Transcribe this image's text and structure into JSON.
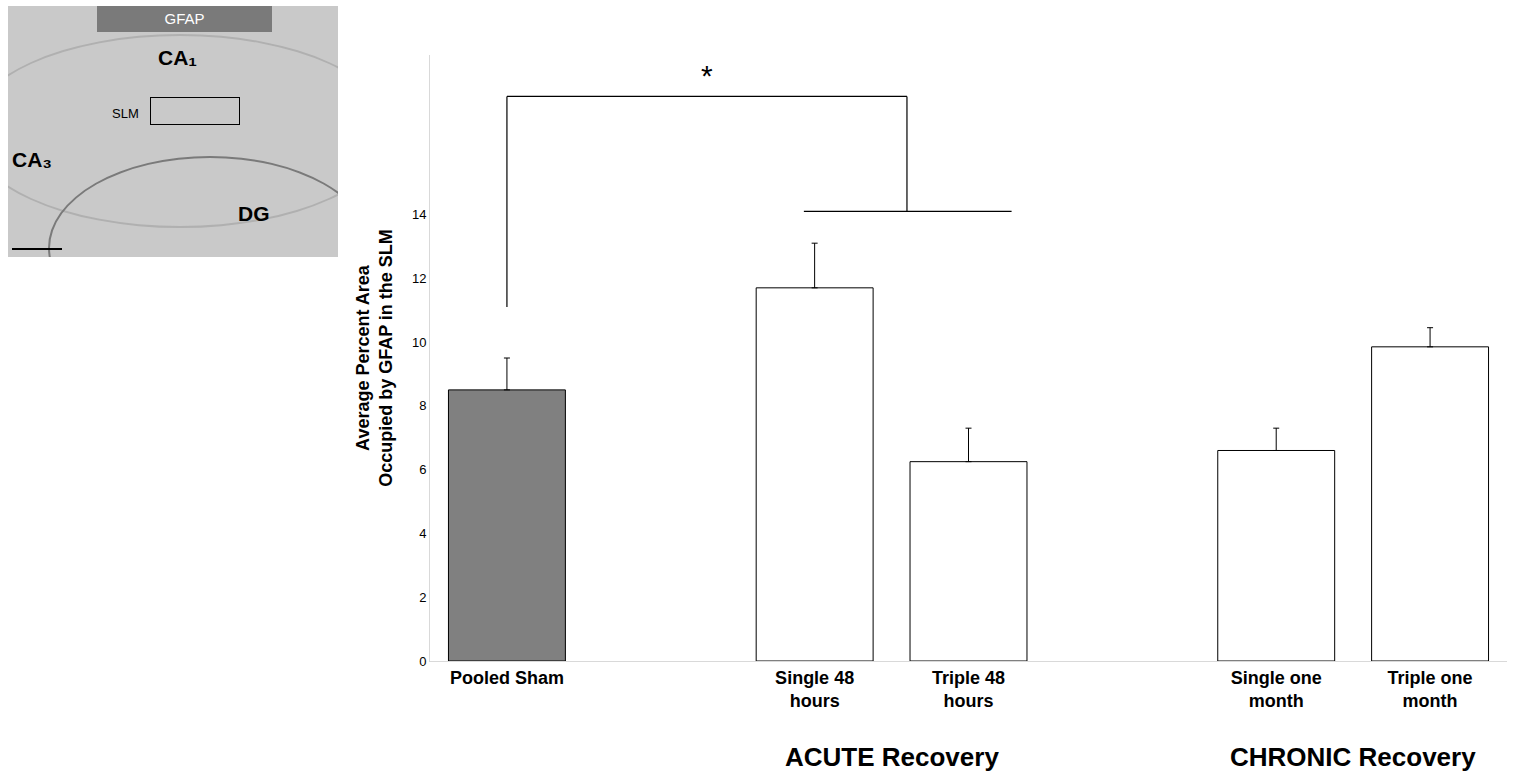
{
  "chart_data": {
    "type": "bar",
    "categories": [
      "Pooled Sham",
      null,
      "Single 48 hours",
      "Triple 48 hours",
      null,
      "Single one month",
      "Triple one month"
    ],
    "values": [
      8.5,
      null,
      11.7,
      6.25,
      null,
      6.6,
      9.85
    ],
    "error": [
      1.0,
      null,
      1.4,
      1.05,
      null,
      0.7,
      0.6
    ],
    "colors": [
      "#808080",
      null,
      "#ffffff",
      "#ffffff",
      null,
      "#ffffff",
      "#ffffff"
    ],
    "y_label": "Average Percent Area Occupied by GFAP in the SLM",
    "ylim": [
      0,
      19
    ],
    "yticks": [
      0,
      2,
      4,
      6,
      8,
      10,
      12,
      14
    ],
    "grid": false,
    "groups": [
      {
        "label": "ACUTE Recovery",
        "categories": [
          "Single 48 hours",
          "Triple 48 hours"
        ]
      },
      {
        "label": "CHRONIC Recovery",
        "categories": [
          "Single one month",
          "Triple one month"
        ],
        "marker": "hatch"
      }
    ],
    "significance": [
      {
        "label": "*",
        "from": "Pooled Sham",
        "to": [
          "Single 48 hours",
          "Triple 48 hours"
        ]
      }
    ],
    "inset": {
      "title": "GFAP",
      "labels": [
        "CA₁",
        "SLM",
        "CA₃",
        "DG"
      ]
    }
  }
}
